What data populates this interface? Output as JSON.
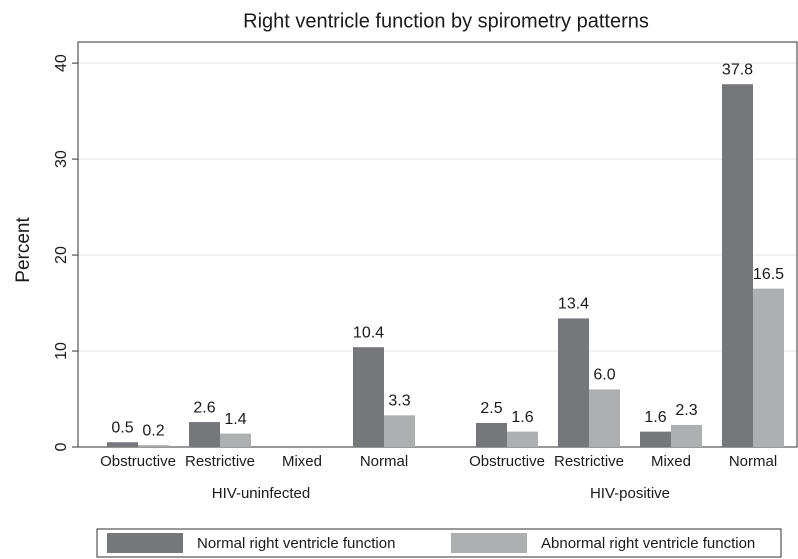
{
  "chart_data": {
    "type": "bar",
    "title": "Right ventricle function by spirometry patterns",
    "ylabel": "Percent",
    "groups": [
      {
        "name": "HIV-uninfected",
        "categories": [
          "Obstructive",
          "Restrictive",
          "Mixed",
          "Normal"
        ]
      },
      {
        "name": "HIV-positive",
        "categories": [
          "Obstructive",
          "Restrictive",
          "Mixed",
          "Normal"
        ]
      }
    ],
    "series": [
      {
        "name": "Normal right ventricle function",
        "color": "#76777b",
        "values": [
          0.5,
          2.6,
          null,
          10.4,
          2.5,
          13.4,
          1.6,
          37.8
        ],
        "value_labels": [
          "0.5",
          "2.6",
          null,
          "10.4",
          "2.5",
          "13.4",
          "1.6",
          "37.8"
        ]
      },
      {
        "name": "Abnormal right ventricle function",
        "color": "#aeafb1",
        "values": [
          0.2,
          1.4,
          null,
          3.3,
          1.6,
          6.0,
          2.3,
          16.5
        ],
        "value_labels": [
          "0.2",
          "1.4",
          null,
          "3.3",
          "1.6",
          "6.0",
          "2.3",
          "16.5"
        ]
      }
    ],
    "ylim": [
      0,
      42.2
    ],
    "yticks": [
      0,
      10,
      20,
      30,
      40
    ],
    "grid": true,
    "legend": "bottom"
  }
}
